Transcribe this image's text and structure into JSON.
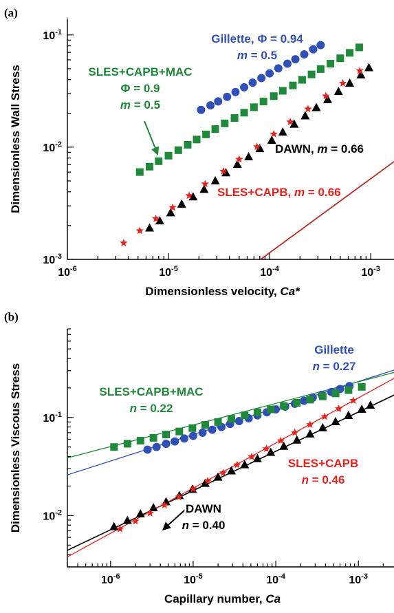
{
  "chart_data": [
    {
      "type": "scatter",
      "panel_label": "(a)",
      "xlabel": "Dimensionless velocity, ",
      "xlabel_var": "Ca*",
      "ylabel": "Dimensionless Wall Stress",
      "xscale": "log",
      "yscale": "log",
      "xlim": [
        1e-06,
        0.0017
      ],
      "ylim": [
        0.001,
        0.14
      ],
      "x_ticks": [
        {
          "v": 1e-06,
          "base": "10",
          "exp": "-6"
        },
        {
          "v": 1e-05,
          "base": "10",
          "exp": "-5"
        },
        {
          "v": 0.0001,
          "base": "10",
          "exp": "-4"
        },
        {
          "v": 0.001,
          "base": "10",
          "exp": "-3"
        }
      ],
      "y_ticks": [
        {
          "v": 0.001,
          "base": "10",
          "exp": "-3"
        },
        {
          "v": 0.01,
          "base": "10",
          "exp": "-2"
        },
        {
          "v": 0.1,
          "base": "10",
          "exp": "-1"
        }
      ],
      "series": [
        {
          "key": "gillette",
          "marker": "circle",
          "color": "#3050b8",
          "fit": {
            "a": 0.0029,
            "m": 0.5
          },
          "x": [
            2.1e-05,
            2.6e-05,
            3.1e-05,
            3.8e-05,
            4.6e-05,
            5.6e-05,
            6.8e-05,
            8.3e-05,
            0.0001,
            0.000122,
            0.00015,
            0.00018,
            0.00022,
            0.00027,
            0.00032
          ],
          "y": [
            0.0215,
            0.0236,
            0.0256,
            0.0281,
            0.031,
            0.0342,
            0.0376,
            0.0413,
            0.0455,
            0.0504,
            0.0555,
            0.0608,
            0.0672,
            0.0745,
            0.0812
          ]
        },
        {
          "key": "sles_capb_mac",
          "marker": "square",
          "color": "#1f8a3a",
          "fit": {
            "a": 0.00185,
            "m": 0.5
          },
          "x": [
            5.2e-06,
            6.5e-06,
            8e-06,
            1e-05,
            1.25e-05,
            1.55e-05,
            1.9e-05,
            2.35e-05,
            2.9e-05,
            3.6e-05,
            4.5e-05,
            5.6e-05,
            7e-05,
            8.7e-05,
            0.00011,
            0.000135,
            0.00017,
            0.00021,
            0.00026,
            0.00032,
            0.0004,
            0.0005,
            0.00062,
            0.00077
          ],
          "y": [
            0.006,
            0.0067,
            0.0075,
            0.0084,
            0.0094,
            0.0105,
            0.0117,
            0.013,
            0.0145,
            0.0163,
            0.0182,
            0.0203,
            0.0227,
            0.0255,
            0.0285,
            0.0318,
            0.0355,
            0.0398,
            0.0445,
            0.0497,
            0.0555,
            0.062,
            0.0693,
            0.0775
          ]
        },
        {
          "key": "dawn",
          "marker": "triangle",
          "color": "#000000",
          "fit": {
            "a": 0.5,
            "m": 0.66
          },
          "x": [
            6.5e-06,
            8.2e-06,
            1.05e-05,
            1.35e-05,
            1.75e-05,
            2.25e-05,
            2.9e-05,
            3.7e-05,
            4.8e-05,
            6.2e-05,
            8e-05,
            0.000105,
            0.000135,
            0.000175,
            0.000225,
            0.00029,
            0.000375,
            0.00048,
            0.00062,
            0.0008,
            0.00096
          ],
          "y": [
            0.0019,
            0.0022,
            0.0026,
            0.0031,
            0.0036,
            0.0042,
            0.005,
            0.0059,
            0.007,
            0.0082,
            0.0097,
            0.0115,
            0.0136,
            0.016,
            0.019,
            0.0225,
            0.0265,
            0.0313,
            0.0371,
            0.044,
            0.051
          ]
        },
        {
          "key": "sles_capb",
          "marker": "star",
          "color": "#e8231e",
          "fit": {
            "a": 0.5,
            "m": 0.66
          },
          "x": [
            3.6e-06,
            5.2e-06,
            7.5e-06,
            1.1e-05,
            1.6e-05,
            2.3e-05,
            3.5e-05,
            5e-05,
            7.5e-05,
            0.00011,
            0.00016,
            0.00024,
            0.00036,
            0.00053,
            0.00078
          ],
          "y": [
            0.0014,
            0.0018,
            0.0023,
            0.0029,
            0.0037,
            0.0047,
            0.0061,
            0.0078,
            0.0101,
            0.0131,
            0.0168,
            0.0219,
            0.0286,
            0.0371,
            0.0479
          ]
        }
      ],
      "annotations": [
        {
          "key": "gillette",
          "color": "#3050b8",
          "lines": [
            "Gillette, Φ = 0.94",
            "m = 0.5"
          ]
        },
        {
          "key": "sles_capb_mac",
          "color": "#1f8a3a",
          "lines": [
            "SLES+CAPB+MAC",
            "Φ = 0.9",
            "m = 0.5"
          ]
        },
        {
          "key": "dawn",
          "color": "#000000",
          "lines": [
            "DAWN, m = 0.66"
          ]
        },
        {
          "key": "sles_capb",
          "color": "#e8231e",
          "lines": [
            "SLES+CAPB, m = 0.66"
          ]
        }
      ]
    },
    {
      "type": "scatter",
      "panel_label": "(b)",
      "xlabel": "Capillary number, ",
      "xlabel_var": "Ca",
      "ylabel": "Dimensionless Viscous Stress",
      "xscale": "log",
      "yscale": "log",
      "xlim": [
        3e-07,
        0.0027
      ],
      "ylim": [
        0.003,
        0.8
      ],
      "x_ticks": [
        {
          "v": 1e-06,
          "base": "10",
          "exp": "-6"
        },
        {
          "v": 1e-05,
          "base": "10",
          "exp": "-5"
        },
        {
          "v": 0.0001,
          "base": "10",
          "exp": "-4"
        },
        {
          "v": 0.001,
          "base": "10",
          "exp": "-3"
        }
      ],
      "y_ticks": [
        {
          "v": 0.01,
          "base": "10",
          "exp": "-2"
        },
        {
          "v": 0.1,
          "base": "10",
          "exp": "-1"
        }
      ],
      "series": [
        {
          "key": "gillette",
          "marker": "circle",
          "color": "#3050b8",
          "fit": {
            "a": 1.5,
            "m": 0.27
          },
          "x": [
            2.8e-06,
            3.6e-06,
            4.7e-06,
            6e-06,
            7.8e-06,
            1e-05,
            1.3e-05,
            1.7e-05,
            2.2e-05,
            2.8e-05,
            3.6e-05,
            4.7e-05,
            6e-05,
            7.8e-05,
            0.0001,
            0.00013,
            0.00017,
            0.00022,
            0.00028,
            0.00036,
            0.00047,
            0.0006,
            0.00078
          ],
          "y": [
            0.047,
            0.05,
            0.054,
            0.057,
            0.061,
            0.065,
            0.07,
            0.075,
            0.08,
            0.086,
            0.092,
            0.098,
            0.105,
            0.113,
            0.121,
            0.129,
            0.138,
            0.148,
            0.159,
            0.17,
            0.182,
            0.195,
            0.209
          ]
        },
        {
          "key": "sles_capb_mac",
          "marker": "square",
          "color": "#1f8a3a",
          "fit": {
            "a": 1.055,
            "m": 0.22
          },
          "x": [
            1.1e-06,
            1.6e-06,
            2.3e-06,
            3.3e-06,
            4.7e-06,
            6.8e-06,
            9.8e-06,
            1.4e-05,
            2e-05,
            2.9e-05,
            4.2e-05,
            6e-05,
            8.7e-05,
            0.000125,
            0.00018,
            0.00026,
            0.00037,
            0.00053,
            0.00076,
            0.0011
          ],
          "y": [
            0.05,
            0.054,
            0.058,
            0.062,
            0.067,
            0.072,
            0.078,
            0.084,
            0.09,
            0.097,
            0.105,
            0.113,
            0.121,
            0.131,
            0.141,
            0.152,
            0.164,
            0.176,
            0.19,
            0.205
          ]
        },
        {
          "key": "dawn",
          "marker": "triangle",
          "color": "#000000",
          "fit": {
            "a": 1.8,
            "m": 0.4
          },
          "x": [
            1.1e-06,
            1.6e-06,
            2.3e-06,
            3.3e-06,
            4.7e-06,
            6.8e-06,
            9.8e-06,
            1.4e-05,
            2e-05,
            2.9e-05,
            4.2e-05,
            6e-05,
            8.7e-05,
            0.000125,
            0.00018,
            0.00026,
            0.00037,
            0.00053,
            0.00076,
            0.0011,
            0.0014
          ],
          "y": [
            0.0077,
            0.0089,
            0.0104,
            0.012,
            0.0138,
            0.016,
            0.0185,
            0.0213,
            0.0246,
            0.0285,
            0.0329,
            0.038,
            0.044,
            0.0508,
            0.0587,
            0.0678,
            0.0784,
            0.0905,
            0.1047,
            0.121,
            0.133
          ]
        },
        {
          "key": "sles_capb",
          "marker": "star",
          "color": "#e8231e",
          "fit": {
            "a": 3.8,
            "m": 0.46
          },
          "x": [
            1.3e-06,
            2e-06,
            3e-06,
            4.5e-06,
            6.7e-06,
            1e-05,
            1.5e-05,
            2.3e-05,
            3.4e-05,
            5.1e-05,
            7.7e-05,
            0.000115,
            0.00017,
            0.00026,
            0.00039,
            0.00058,
            0.00087
          ],
          "y": [
            0.0073,
            0.0088,
            0.0106,
            0.0128,
            0.0155,
            0.0187,
            0.0226,
            0.0273,
            0.0329,
            0.0397,
            0.048,
            0.058,
            0.0701,
            0.0846,
            0.102,
            0.123,
            0.149
          ]
        }
      ],
      "annotations": [
        {
          "key": "gillette",
          "color": "#3050b8",
          "lines": [
            "Gillette",
            "n = 0.27"
          ]
        },
        {
          "key": "sles_capb_mac",
          "color": "#1f8a3a",
          "lines": [
            "SLES+CAPB+MAC",
            "n = 0.22"
          ]
        },
        {
          "key": "sles_capb",
          "color": "#e8231e",
          "lines": [
            "SLES+CAPB",
            "n = 0.46"
          ]
        },
        {
          "key": "dawn",
          "color": "#000000",
          "lines": [
            "DAWN",
            "n = 0.40"
          ]
        }
      ]
    }
  ]
}
